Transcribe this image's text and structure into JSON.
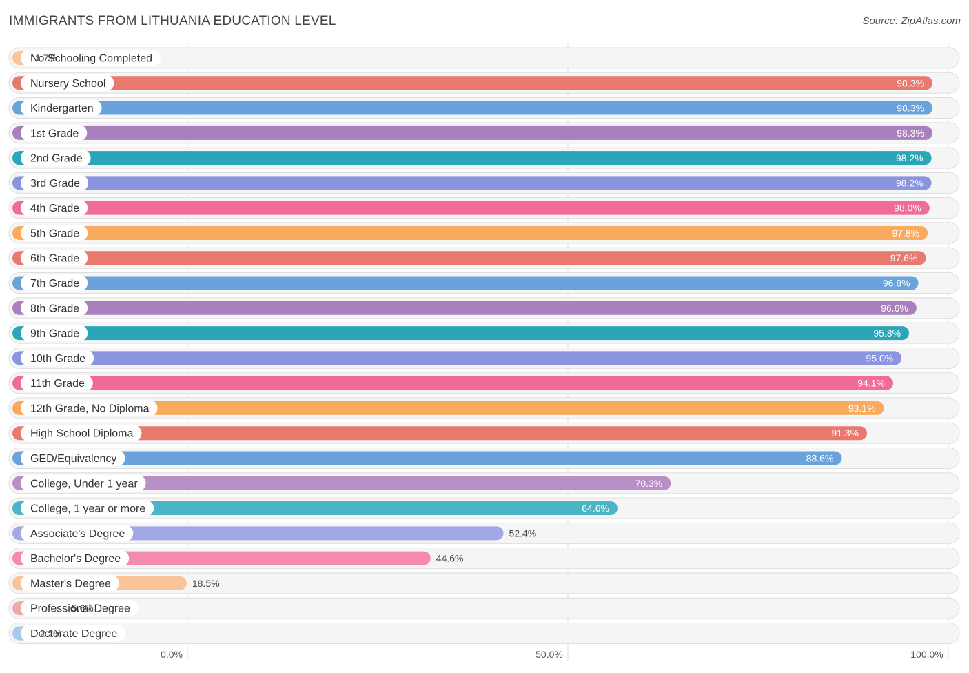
{
  "title": "IMMIGRANTS FROM LITHUANIA EDUCATION LEVEL",
  "source": "Source: ZipAtlas.com",
  "chart_data": {
    "type": "bar",
    "orientation": "horizontal",
    "title": "IMMIGRANTS FROM LITHUANIA EDUCATION LEVEL",
    "xlim": [
      0,
      100
    ],
    "x_ticks": [
      "0.0%",
      "50.0%",
      "100.0%"
    ],
    "x_tick_values": [
      0,
      50,
      100
    ],
    "grid": true,
    "categories": [
      "No Schooling Completed",
      "Nursery School",
      "Kindergarten",
      "1st Grade",
      "2nd Grade",
      "3rd Grade",
      "4th Grade",
      "5th Grade",
      "6th Grade",
      "7th Grade",
      "8th Grade",
      "9th Grade",
      "10th Grade",
      "11th Grade",
      "12th Grade, No Diploma",
      "High School Diploma",
      "GED/Equivalency",
      "College, Under 1 year",
      "College, 1 year or more",
      "Associate's Degree",
      "Bachelor's Degree",
      "Master's Degree",
      "Professional Degree",
      "Doctorate Degree"
    ],
    "values": [
      1.7,
      98.3,
      98.3,
      98.3,
      98.2,
      98.2,
      98.0,
      97.8,
      97.6,
      96.8,
      96.6,
      95.8,
      95.0,
      94.1,
      93.1,
      91.3,
      88.6,
      70.3,
      64.6,
      52.4,
      44.6,
      18.5,
      5.6,
      2.2
    ],
    "value_labels": [
      "1.7%",
      "98.3%",
      "98.3%",
      "98.3%",
      "98.2%",
      "98.2%",
      "98.0%",
      "97.8%",
      "97.6%",
      "96.8%",
      "96.6%",
      "95.8%",
      "95.0%",
      "94.1%",
      "93.1%",
      "91.3%",
      "88.6%",
      "70.3%",
      "64.6%",
      "52.4%",
      "44.6%",
      "18.5%",
      "5.6%",
      "2.2%"
    ],
    "colors": [
      "#f9c49a",
      "#e8796f",
      "#6aa3dc",
      "#a97fbd",
      "#2aa6b8",
      "#8b95df",
      "#f06b97",
      "#f8aa5e",
      "#e8796f",
      "#6aa3dc",
      "#a97fbd",
      "#2aa6b8",
      "#8b95df",
      "#f06b97",
      "#f8aa5e",
      "#e8796f",
      "#6aa3dc",
      "#b98fc8",
      "#4ab5c4",
      "#a0a8e6",
      "#f48bae",
      "#f9c49a",
      "#eeaaab",
      "#a8c8ec"
    ]
  }
}
